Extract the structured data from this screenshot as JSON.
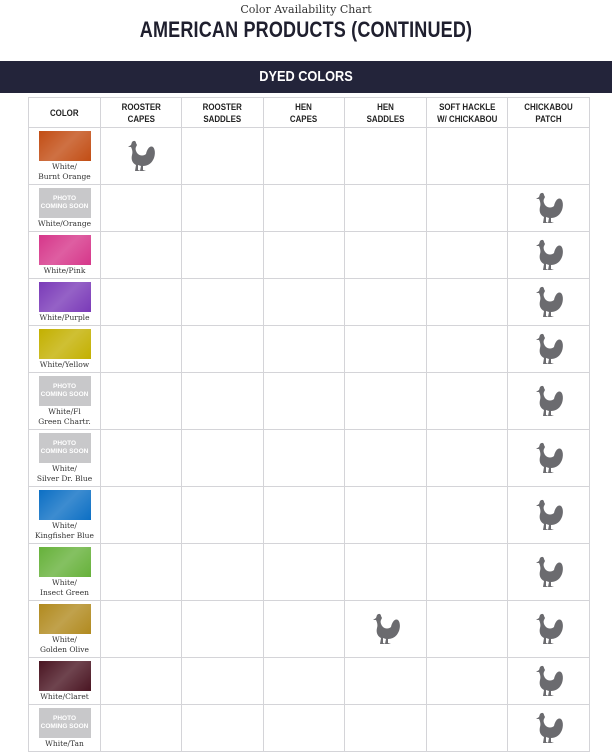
{
  "header": {
    "subtitle": "Color Availability Chart",
    "title": "AMERICAN PRODUCTS (CONTINUED)"
  },
  "section": {
    "title": "DYED COLORS"
  },
  "columns": [
    "COLOR",
    "ROOSTER\nCAPES",
    "ROOSTER\nSADDLES",
    "HEN\nCAPES",
    "HEN\nSADDLES",
    "SOFT HACKLE\nW/ CHICKABOU",
    "CHICKABOU\nPATCH"
  ],
  "placeholder_text": "PHOTO\nCOMING SOON",
  "availability_icon": "rooster-icon",
  "rows": [
    {
      "label": "White/\nBurnt Orange",
      "swatch": "#c24d14",
      "cells": [
        1,
        0,
        0,
        0,
        0,
        0
      ]
    },
    {
      "label": "White/Orange",
      "swatch": null,
      "cells": [
        0,
        0,
        0,
        0,
        0,
        1
      ]
    },
    {
      "label": "White/Pink",
      "swatch": "#d6368a",
      "cells": [
        0,
        0,
        0,
        0,
        0,
        1
      ]
    },
    {
      "label": "White/Purple",
      "swatch": "#7a3ab8",
      "cells": [
        0,
        0,
        0,
        0,
        0,
        1
      ]
    },
    {
      "label": "White/Yellow",
      "swatch": "#c3b000",
      "cells": [
        0,
        0,
        0,
        0,
        0,
        1
      ]
    },
    {
      "label": "White/Fl\nGreen Chartr.",
      "swatch": null,
      "cells": [
        0,
        0,
        0,
        0,
        0,
        1
      ]
    },
    {
      "label": "White/\nSilver Dr. Blue",
      "swatch": null,
      "cells": [
        0,
        0,
        0,
        0,
        0,
        1
      ]
    },
    {
      "label": "White/\nKingfisher Blue",
      "swatch": "#0c6fc4",
      "cells": [
        0,
        0,
        0,
        0,
        0,
        1
      ]
    },
    {
      "label": "White/\nInsect Green",
      "swatch": "#66b13a",
      "cells": [
        0,
        0,
        0,
        0,
        0,
        1
      ]
    },
    {
      "label": "White/\nGolden Olive",
      "swatch": "#b18a1f",
      "cells": [
        0,
        0,
        0,
        1,
        0,
        1
      ]
    },
    {
      "label": "White/Claret",
      "swatch": "#4a1522",
      "cells": [
        0,
        0,
        0,
        0,
        0,
        1
      ]
    },
    {
      "label": "White/Tan",
      "swatch": null,
      "cells": [
        0,
        0,
        0,
        0,
        0,
        1
      ]
    }
  ]
}
